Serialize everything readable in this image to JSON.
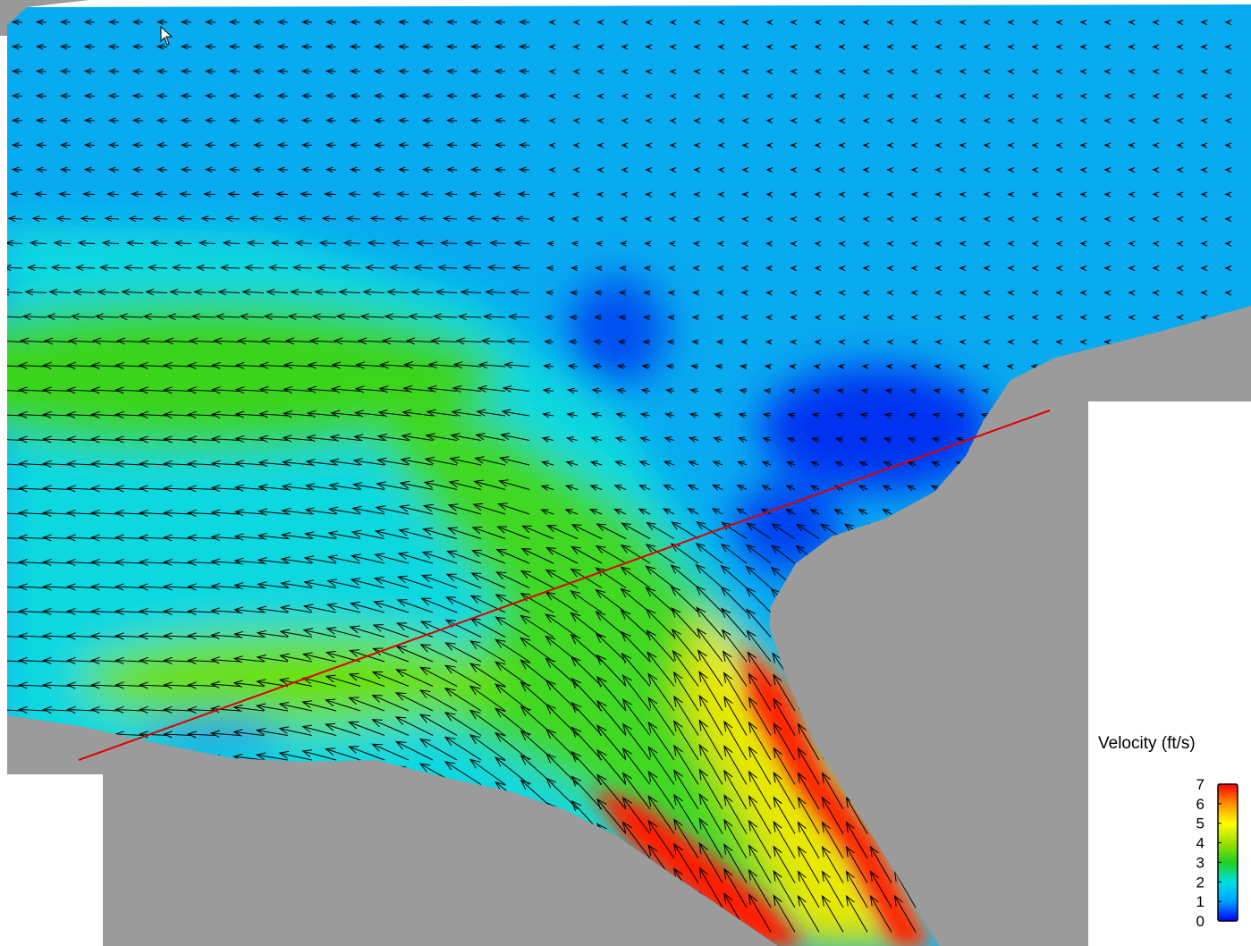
{
  "chart_data": {
    "type": "vector-field",
    "colorbar": {
      "title": "Velocity (ft/s)",
      "lim": [
        0,
        7
      ],
      "ticks": [
        0,
        1,
        2,
        3,
        4,
        5,
        6,
        7
      ],
      "colors": [
        "#0000ff",
        "#00a0ff",
        "#00e0e0",
        "#20d020",
        "#a0e000",
        "#ffff00",
        "#ff9000",
        "#ff0000"
      ]
    }
  }
}
